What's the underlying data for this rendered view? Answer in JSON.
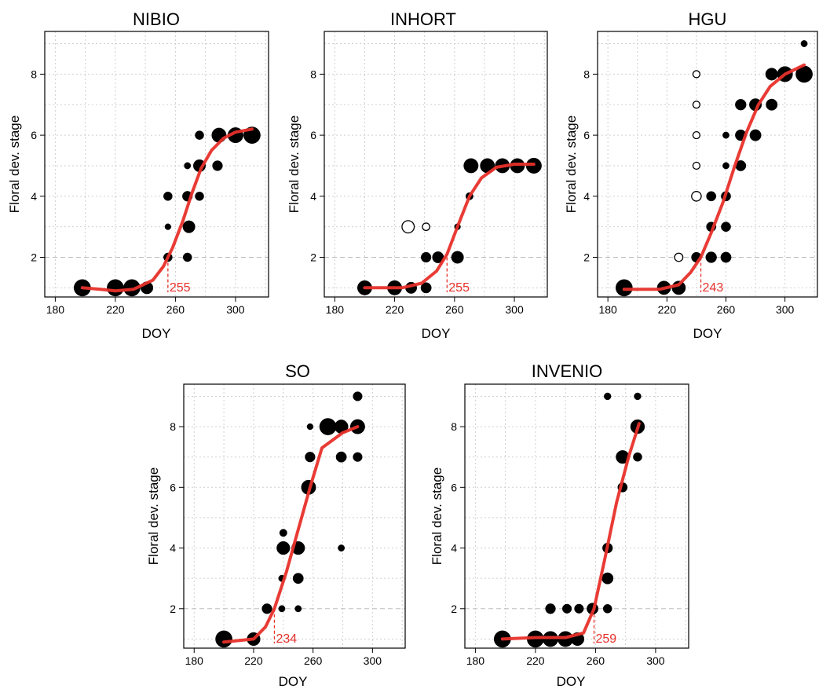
{
  "chart_data": [
    {
      "type": "scatter",
      "title": "NIBIO",
      "xlabel": "DOY",
      "ylabel": "Floral dev. stage",
      "xlim": [
        173,
        322
      ],
      "ylim": [
        0.7,
        9.4
      ],
      "xticks": [
        180,
        220,
        260,
        300
      ],
      "yticks": [
        2,
        4,
        6,
        8
      ],
      "grid": true,
      "reference_y": 2,
      "onset": {
        "doy": 255,
        "label": "255"
      },
      "points": [
        {
          "doy": 198,
          "stage": 1,
          "size": 3
        },
        {
          "doy": 220,
          "stage": 1,
          "size": 3
        },
        {
          "doy": 231,
          "stage": 1,
          "size": 3
        },
        {
          "doy": 241,
          "stage": 1,
          "size": 2
        },
        {
          "doy": 255,
          "stage": 2,
          "size": 1.2
        },
        {
          "doy": 255,
          "stage": 3,
          "size": 0.6
        },
        {
          "doy": 255,
          "stage": 4,
          "size": 1.2
        },
        {
          "doy": 268,
          "stage": 2,
          "size": 1.2
        },
        {
          "doy": 269,
          "stage": 3,
          "size": 2
        },
        {
          "doy": 268,
          "stage": 4,
          "size": 1.5
        },
        {
          "doy": 268,
          "stage": 5,
          "size": 0.7
        },
        {
          "doy": 276,
          "stage": 4,
          "size": 1.2
        },
        {
          "doy": 276,
          "stage": 5,
          "size": 2
        },
        {
          "doy": 276,
          "stage": 6,
          "size": 1.2
        },
        {
          "doy": 288,
          "stage": 5,
          "size": 1.5
        },
        {
          "doy": 289,
          "stage": 6,
          "size": 2.5
        },
        {
          "doy": 300,
          "stage": 6,
          "size": 2.7
        },
        {
          "doy": 311,
          "stage": 6,
          "size": 3
        }
      ],
      "fit": [
        [
          198,
          1.0
        ],
        [
          210,
          0.95
        ],
        [
          220,
          0.9
        ],
        [
          232,
          0.95
        ],
        [
          245,
          1.25
        ],
        [
          252,
          1.7
        ],
        [
          258,
          2.3
        ],
        [
          265,
          3.2
        ],
        [
          271,
          4.1
        ],
        [
          277,
          4.9
        ],
        [
          284,
          5.5
        ],
        [
          292,
          5.9
        ],
        [
          300,
          6.1
        ],
        [
          311,
          6.2
        ]
      ]
    },
    {
      "type": "scatter",
      "title": "INHORT",
      "xlabel": "DOY",
      "ylabel": "Floral dev. stage",
      "xlim": [
        173,
        322
      ],
      "ylim": [
        0.7,
        9.4
      ],
      "xticks": [
        180,
        220,
        260,
        300
      ],
      "yticks": [
        2,
        4,
        6,
        8
      ],
      "grid": true,
      "reference_y": 2,
      "onset": {
        "doy": 255,
        "label": "255"
      },
      "points": [
        {
          "doy": 200,
          "stage": 1,
          "size": 2.5
        },
        {
          "doy": 220,
          "stage": 1,
          "size": 2.5
        },
        {
          "doy": 231,
          "stage": 1,
          "size": 1.8
        },
        {
          "doy": 241,
          "stage": 1,
          "size": 1.6
        },
        {
          "doy": 229,
          "stage": 3,
          "size": 2,
          "open": true
        },
        {
          "doy": 241,
          "stage": 3,
          "size": 0.9,
          "open": true
        },
        {
          "doy": 241,
          "stage": 2,
          "size": 1.5
        },
        {
          "doy": 249,
          "stage": 2,
          "size": 1.8
        },
        {
          "doy": 262,
          "stage": 2,
          "size": 2
        },
        {
          "doy": 262,
          "stage": 3,
          "size": 0.6
        },
        {
          "doy": 270,
          "stage": 4,
          "size": 0.9
        },
        {
          "doy": 271,
          "stage": 5,
          "size": 2.5
        },
        {
          "doy": 282,
          "stage": 5,
          "size": 2.5
        },
        {
          "doy": 292,
          "stage": 5,
          "size": 2.5
        },
        {
          "doy": 302,
          "stage": 5,
          "size": 2.5
        },
        {
          "doy": 313,
          "stage": 5,
          "size": 2.7
        }
      ],
      "fit": [
        [
          200,
          1.0
        ],
        [
          225,
          1.0
        ],
        [
          238,
          1.15
        ],
        [
          248,
          1.55
        ],
        [
          255,
          2.1
        ],
        [
          262,
          3.0
        ],
        [
          270,
          4.0
        ],
        [
          278,
          4.6
        ],
        [
          288,
          4.95
        ],
        [
          300,
          5.05
        ],
        [
          313,
          5.05
        ]
      ]
    },
    {
      "type": "scatter",
      "title": "HGU",
      "xlabel": "DOY",
      "ylabel": "Floral dev. stage",
      "xlim": [
        173,
        322
      ],
      "ylim": [
        0.7,
        9.4
      ],
      "xticks": [
        180,
        220,
        260,
        300
      ],
      "yticks": [
        2,
        4,
        6,
        8
      ],
      "grid": true,
      "reference_y": 2,
      "onset": {
        "doy": 243,
        "label": "243"
      },
      "points": [
        {
          "doy": 191,
          "stage": 1,
          "size": 3
        },
        {
          "doy": 218,
          "stage": 1,
          "size": 2.3
        },
        {
          "doy": 228,
          "stage": 1,
          "size": 2.3
        },
        {
          "doy": 228,
          "stage": 2,
          "size": 1.1,
          "open": true
        },
        {
          "doy": 240,
          "stage": 2,
          "size": 1.5
        },
        {
          "doy": 240,
          "stage": 4,
          "size": 1.4,
          "open": true
        },
        {
          "doy": 240,
          "stage": 5,
          "size": 0.8,
          "open": true
        },
        {
          "doy": 240,
          "stage": 6,
          "size": 0.8,
          "open": true
        },
        {
          "doy": 240,
          "stage": 7,
          "size": 0.8,
          "open": true
        },
        {
          "doy": 240,
          "stage": 8,
          "size": 0.8,
          "open": true
        },
        {
          "doy": 250,
          "stage": 2,
          "size": 1.7
        },
        {
          "doy": 250,
          "stage": 3,
          "size": 1.4
        },
        {
          "doy": 250,
          "stage": 4,
          "size": 1.4
        },
        {
          "doy": 260,
          "stage": 2,
          "size": 1.6
        },
        {
          "doy": 260,
          "stage": 3,
          "size": 1.4
        },
        {
          "doy": 260,
          "stage": 4,
          "size": 1.4
        },
        {
          "doy": 260,
          "stage": 5,
          "size": 0.7
        },
        {
          "doy": 260,
          "stage": 6,
          "size": 0.7
        },
        {
          "doy": 270,
          "stage": 5,
          "size": 1.6
        },
        {
          "doy": 270,
          "stage": 6,
          "size": 1.7
        },
        {
          "doy": 270,
          "stage": 7,
          "size": 1.7
        },
        {
          "doy": 280,
          "stage": 6,
          "size": 1.8
        },
        {
          "doy": 280,
          "stage": 7,
          "size": 2
        },
        {
          "doy": 291,
          "stage": 7,
          "size": 1.8
        },
        {
          "doy": 291,
          "stage": 8,
          "size": 2
        },
        {
          "doy": 300,
          "stage": 8,
          "size": 2.7
        },
        {
          "doy": 313,
          "stage": 8,
          "size": 3
        },
        {
          "doy": 313,
          "stage": 9,
          "size": 0.7
        }
      ],
      "fit": [
        [
          191,
          0.95
        ],
        [
          215,
          0.95
        ],
        [
          228,
          1.1
        ],
        [
          236,
          1.5
        ],
        [
          243,
          2.0
        ],
        [
          250,
          2.8
        ],
        [
          258,
          3.8
        ],
        [
          266,
          5.0
        ],
        [
          274,
          6.1
        ],
        [
          282,
          7.0
        ],
        [
          290,
          7.6
        ],
        [
          300,
          8.0
        ],
        [
          313,
          8.3
        ]
      ]
    },
    {
      "type": "scatter",
      "title": "SO",
      "xlabel": "DOY",
      "ylabel": "Floral dev. stage",
      "xlim": [
        173,
        322
      ],
      "ylim": [
        0.7,
        9.4
      ],
      "xticks": [
        180,
        220,
        260,
        300
      ],
      "yticks": [
        2,
        4,
        6,
        8
      ],
      "grid": true,
      "reference_y": 2,
      "onset": {
        "doy": 234,
        "label": "234"
      },
      "points": [
        {
          "doy": 200,
          "stage": 1,
          "size": 3
        },
        {
          "doy": 220,
          "stage": 1,
          "size": 2.2
        },
        {
          "doy": 229,
          "stage": 2,
          "size": 1.5
        },
        {
          "doy": 239,
          "stage": 2,
          "size": 0.7
        },
        {
          "doy": 239,
          "stage": 3,
          "size": 0.7
        },
        {
          "doy": 240,
          "stage": 4,
          "size": 2.2
        },
        {
          "doy": 240,
          "stage": 4.5,
          "size": 0.9
        },
        {
          "doy": 250,
          "stage": 2,
          "size": 0.7
        },
        {
          "doy": 250,
          "stage": 3,
          "size": 1.6
        },
        {
          "doy": 250,
          "stage": 4,
          "size": 2.2
        },
        {
          "doy": 257,
          "stage": 6,
          "size": 2.5
        },
        {
          "doy": 258,
          "stage": 7,
          "size": 1.5
        },
        {
          "doy": 258,
          "stage": 8,
          "size": 0.6
        },
        {
          "doy": 270,
          "stage": 8,
          "size": 3
        },
        {
          "doy": 279,
          "stage": 4,
          "size": 0.7
        },
        {
          "doy": 279,
          "stage": 7,
          "size": 1.6
        },
        {
          "doy": 279,
          "stage": 8,
          "size": 2.3
        },
        {
          "doy": 290,
          "stage": 7,
          "size": 1.3
        },
        {
          "doy": 290,
          "stage": 8,
          "size": 2.5
        },
        {
          "doy": 290,
          "stage": 9,
          "size": 1.3
        }
      ],
      "fit": [
        [
          200,
          0.9
        ],
        [
          220,
          1.0
        ],
        [
          228,
          1.4
        ],
        [
          234,
          2.0
        ],
        [
          242,
          3.2
        ],
        [
          250,
          4.6
        ],
        [
          258,
          6.0
        ],
        [
          266,
          7.3
        ],
        [
          280,
          7.8
        ],
        [
          290,
          8.0
        ]
      ]
    },
    {
      "type": "scatter",
      "title": "INVENIO",
      "xlabel": "DOY",
      "ylabel": "Floral dev. stage",
      "xlim": [
        173,
        322
      ],
      "ylim": [
        0.7,
        9.4
      ],
      "xticks": [
        180,
        220,
        260,
        300
      ],
      "yticks": [
        2,
        4,
        6,
        8
      ],
      "grid": true,
      "reference_y": 2,
      "onset": {
        "doy": 259,
        "label": "259"
      },
      "points": [
        {
          "doy": 198,
          "stage": 1,
          "size": 3
        },
        {
          "doy": 220,
          "stage": 1,
          "size": 3
        },
        {
          "doy": 230,
          "stage": 1,
          "size": 2.7
        },
        {
          "doy": 240,
          "stage": 1,
          "size": 2.7
        },
        {
          "doy": 248,
          "stage": 1,
          "size": 2.2
        },
        {
          "doy": 230,
          "stage": 2,
          "size": 1.5
        },
        {
          "doy": 241,
          "stage": 2,
          "size": 1.3
        },
        {
          "doy": 249,
          "stage": 2,
          "size": 1.3
        },
        {
          "doy": 258,
          "stage": 2,
          "size": 1.8
        },
        {
          "doy": 268,
          "stage": 2,
          "size": 1.2
        },
        {
          "doy": 268,
          "stage": 3,
          "size": 1.8
        },
        {
          "doy": 268,
          "stage": 4,
          "size": 1.5
        },
        {
          "doy": 268,
          "stage": 9,
          "size": 0.8
        },
        {
          "doy": 278,
          "stage": 6,
          "size": 1.4
        },
        {
          "doy": 278,
          "stage": 7,
          "size": 2.2
        },
        {
          "doy": 288,
          "stage": 7,
          "size": 1.2
        },
        {
          "doy": 288,
          "stage": 8,
          "size": 2.4
        },
        {
          "doy": 288,
          "stage": 9,
          "size": 0.8
        }
      ],
      "fit": [
        [
          198,
          1.0
        ],
        [
          220,
          1.05
        ],
        [
          240,
          1.05
        ],
        [
          252,
          1.2
        ],
        [
          259,
          2.0
        ],
        [
          266,
          3.6
        ],
        [
          274,
          5.5
        ],
        [
          282,
          7.0
        ],
        [
          289,
          8.1
        ]
      ]
    }
  ]
}
